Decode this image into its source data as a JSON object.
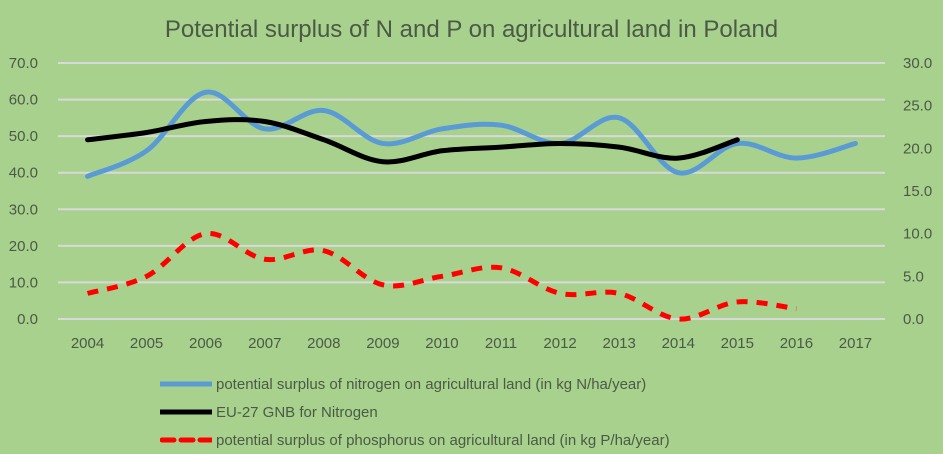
{
  "chart_data": {
    "type": "line",
    "title": "Potential surplus of N and P on agricultural land in Poland",
    "xlabel": "",
    "ylabel": "",
    "categories": [
      "2004",
      "2005",
      "2006",
      "2007",
      "2008",
      "2009",
      "2010",
      "2011",
      "2012",
      "2013",
      "2014",
      "2015",
      "2016",
      "2017"
    ],
    "y_left": {
      "ylim": [
        0,
        70
      ],
      "ticks": [
        "0.0",
        "10.0",
        "20.0",
        "30.0",
        "40.0",
        "50.0",
        "60.0",
        "70.0"
      ]
    },
    "y_right": {
      "ylim": [
        0,
        30
      ],
      "ticks": [
        "0.0",
        "5.0",
        "10.0",
        "15.0",
        "20.0",
        "25.0",
        "30.0"
      ]
    },
    "grid": true,
    "legend_position": "bottom",
    "series": [
      {
        "name": "potential surplus of nitrogen on agricultural land (in kg N/ha/year)",
        "axis": "left",
        "color": "#5B9BD5",
        "style": "solid",
        "values": [
          39,
          46,
          62,
          52,
          57,
          48,
          52,
          53,
          48,
          55,
          40,
          48,
          44,
          48
        ]
      },
      {
        "name": "EU-27 GNB for Nitrogen",
        "axis": "left",
        "color": "#000000",
        "style": "solid",
        "values": [
          49,
          51,
          54,
          54,
          49,
          43,
          46,
          47,
          48,
          47,
          44,
          49,
          null,
          null
        ]
      },
      {
        "name": "potential surplus of phosphorus on agricultural land (in kg P/ha/year)",
        "axis": "right",
        "color": "#FF0000",
        "style": "dashed",
        "values": [
          3.0,
          5.0,
          10.0,
          7.0,
          8.0,
          4.0,
          5.0,
          6.0,
          3.0,
          3.0,
          0.0,
          2.0,
          1.2,
          null
        ]
      }
    ]
  }
}
